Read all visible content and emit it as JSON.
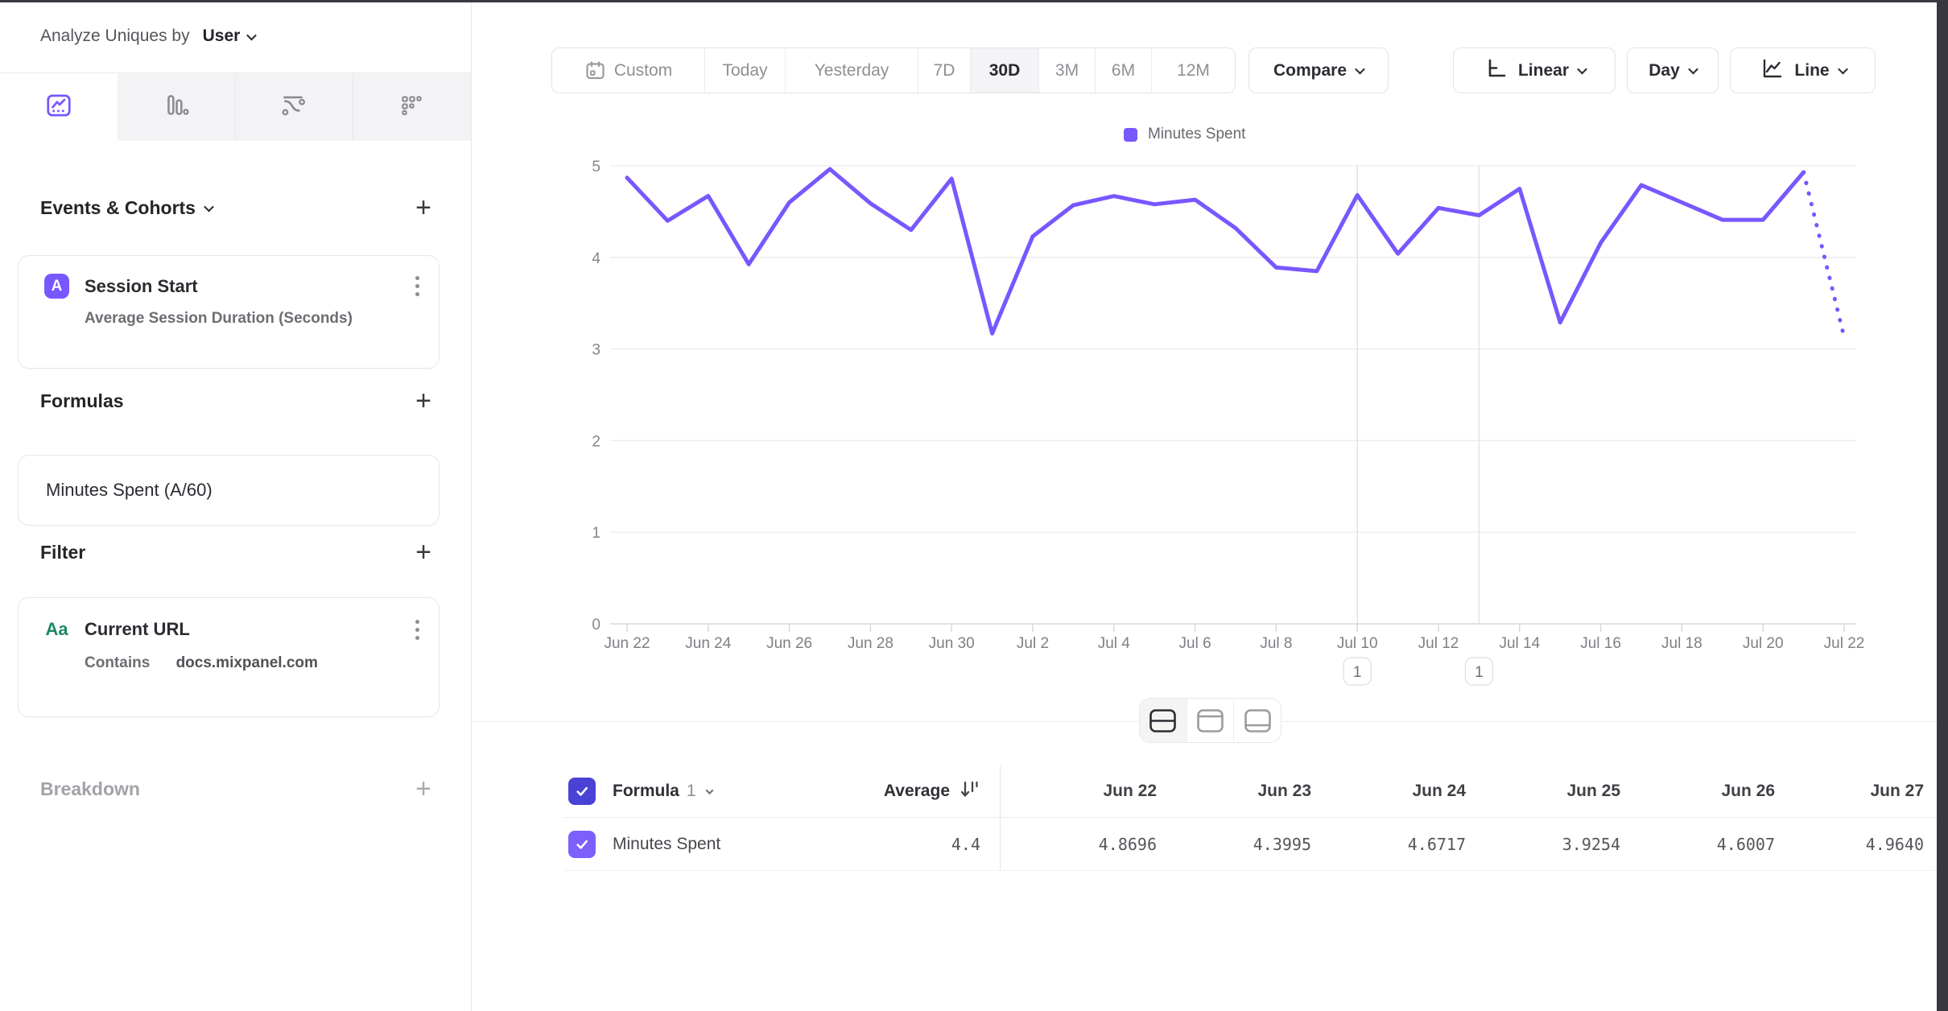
{
  "sidebar": {
    "analyze_label": "Analyze Uniques by",
    "analyze_value": "User",
    "tabs": [
      {
        "icon": "line-chart-icon",
        "active": true
      },
      {
        "icon": "bar-chart-icon",
        "active": false
      },
      {
        "icon": "flow-icon",
        "active": false
      },
      {
        "icon": "grid-dots-icon",
        "active": false
      }
    ],
    "events_heading": "Events & Cohorts",
    "event_card": {
      "letter": "A",
      "title": "Session Start",
      "subtitle": "Average Session Duration (Seconds)"
    },
    "formulas_heading": "Formulas",
    "formula_card": {
      "title": "Minutes Spent (A/60)"
    },
    "filter_heading": "Filter",
    "filter_card": {
      "type_label": "Aa",
      "title": "Current URL",
      "operator": "Contains",
      "value": "docs.mixpanel.com"
    },
    "breakdown_heading": "Breakdown"
  },
  "toolbar": {
    "date_ranges": [
      "Custom",
      "Today",
      "Yesterday",
      "7D",
      "30D",
      "3M",
      "6M",
      "12M"
    ],
    "active_range": "30D",
    "compare_label": "Compare",
    "scale_label": "Linear",
    "granularity_label": "Day",
    "chart_type_label": "Line"
  },
  "chart_data": {
    "type": "line",
    "title": "",
    "xlabel": "",
    "ylabel": "",
    "ylim": [
      0,
      5
    ],
    "yticks": [
      0,
      1,
      2,
      3,
      4,
      5
    ],
    "grid": true,
    "legend_position": "top",
    "line_color": "#7857ff",
    "x_tick_step": 2,
    "x": [
      "Jun 22",
      "Jun 23",
      "Jun 24",
      "Jun 25",
      "Jun 26",
      "Jun 27",
      "Jun 28",
      "Jun 29",
      "Jun 30",
      "Jul 1",
      "Jul 2",
      "Jul 3",
      "Jul 4",
      "Jul 5",
      "Jul 6",
      "Jul 7",
      "Jul 8",
      "Jul 9",
      "Jul 10",
      "Jul 11",
      "Jul 12",
      "Jul 13",
      "Jul 14",
      "Jul 15",
      "Jul 16",
      "Jul 17",
      "Jul 18",
      "Jul 19",
      "Jul 20",
      "Jul 21",
      "Jul 22"
    ],
    "series": [
      {
        "name": "Minutes Spent",
        "values": [
          4.8696,
          4.3995,
          4.6717,
          3.9254,
          4.6007,
          4.964,
          4.59,
          4.3,
          4.86,
          3.17,
          4.23,
          4.57,
          4.67,
          4.58,
          4.63,
          4.32,
          3.89,
          3.85,
          4.68,
          4.04,
          4.54,
          4.46,
          4.75,
          3.29,
          4.16,
          4.79,
          4.6,
          4.41,
          4.41,
          4.93,
          3.13
        ]
      }
    ],
    "incomplete_last_segment": true,
    "annotations": [
      {
        "x": "Jul 10",
        "label": "1"
      },
      {
        "x": "Jul 13",
        "label": "1"
      }
    ]
  },
  "table": {
    "entity_header": "Formula",
    "entity_header_index": "1",
    "average_label": "Average",
    "row_label": "Minutes Spent",
    "average_value": "4.4",
    "columns": [
      "Jun 22",
      "Jun 23",
      "Jun 24",
      "Jun 25",
      "Jun 26",
      "Jun 27"
    ],
    "values": [
      "4.8696",
      "4.3995",
      "4.6717",
      "3.9254",
      "4.6007",
      "4.9640"
    ]
  },
  "colors": {
    "accent": "#7857ff",
    "checkbox_header": "#4a42d4",
    "checkbox_row": "#7d5ffb",
    "green_type": "#1d8662",
    "frame_dark": "#3a3642"
  }
}
